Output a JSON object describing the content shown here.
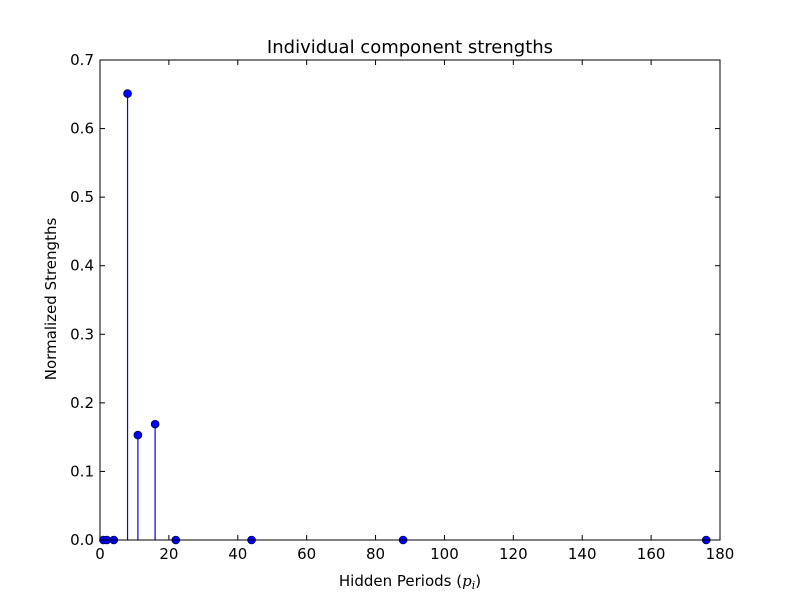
{
  "chart_data": {
    "type": "stem",
    "title": "Individual component strengths",
    "xlabel": "Hidden Periods",
    "xlabel_math_main": "p",
    "xlabel_math_sub": "i",
    "ylabel": "Normalized Strengths",
    "xlim": [
      0,
      180
    ],
    "ylim": [
      0,
      0.7
    ],
    "xticks": [
      0,
      20,
      40,
      60,
      80,
      100,
      120,
      140,
      160,
      180
    ],
    "yticks": [
      0.0,
      0.1,
      0.2,
      0.3,
      0.4,
      0.5,
      0.6,
      0.7
    ],
    "xtick_labels": [
      "0",
      "20",
      "40",
      "60",
      "80",
      "100",
      "120",
      "140",
      "160",
      "180"
    ],
    "ytick_labels": [
      "0.0",
      "0.1",
      "0.2",
      "0.3",
      "0.4",
      "0.5",
      "0.6",
      "0.7"
    ],
    "grid": false,
    "color": "#0000ff",
    "points": [
      {
        "x": 1,
        "y": 0.0
      },
      {
        "x": 2,
        "y": 0.0
      },
      {
        "x": 4,
        "y": 0.0
      },
      {
        "x": 8,
        "y": 0.651
      },
      {
        "x": 11,
        "y": 0.153
      },
      {
        "x": 16,
        "y": 0.169
      },
      {
        "x": 22,
        "y": 0.0
      },
      {
        "x": 44,
        "y": 0.0
      },
      {
        "x": 88,
        "y": 0.0
      },
      {
        "x": 176,
        "y": 0.0
      }
    ]
  }
}
